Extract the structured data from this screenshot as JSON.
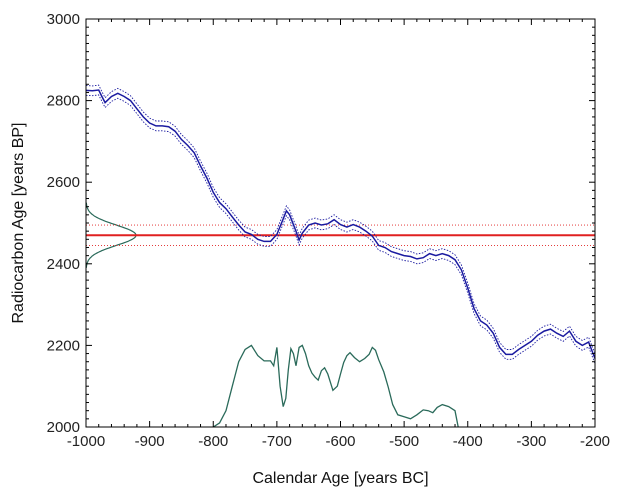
{
  "chart_data": {
    "type": "line",
    "xlabel": "Calendar Age [years BC]",
    "ylabel": "Radiocarbon Age [years BP]",
    "xlim": [
      -1000,
      -200
    ],
    "ylim": [
      2000,
      3000
    ],
    "xticks": [
      -1000,
      -900,
      -800,
      -700,
      -600,
      -500,
      -400,
      -300,
      -200
    ],
    "yticks": [
      2000,
      2200,
      2400,
      2600,
      2800,
      3000
    ],
    "xtick_labels": [
      "-1000",
      "-900",
      "-800",
      "-700",
      "-600",
      "-500",
      "-400",
      "-300",
      "-200"
    ],
    "ytick_labels": [
      "2000",
      "2200",
      "2400",
      "2600",
      "2800",
      "3000"
    ],
    "grid": false,
    "colors": {
      "calibration_curve": "#1a1aa0",
      "measurement": "#e02020",
      "distribution": "#2a6a5a"
    },
    "calibration_curve": {
      "sigma": 12,
      "points": [
        [
          -1000,
          2825
        ],
        [
          -990,
          2824
        ],
        [
          -980,
          2826
        ],
        [
          -975,
          2810
        ],
        [
          -970,
          2795
        ],
        [
          -960,
          2810
        ],
        [
          -950,
          2818
        ],
        [
          -940,
          2810
        ],
        [
          -930,
          2800
        ],
        [
          -920,
          2780
        ],
        [
          -910,
          2760
        ],
        [
          -900,
          2745
        ],
        [
          -890,
          2738
        ],
        [
          -880,
          2738
        ],
        [
          -870,
          2736
        ],
        [
          -860,
          2725
        ],
        [
          -850,
          2705
        ],
        [
          -840,
          2690
        ],
        [
          -830,
          2672
        ],
        [
          -820,
          2640
        ],
        [
          -810,
          2610
        ],
        [
          -800,
          2575
        ],
        [
          -790,
          2550
        ],
        [
          -780,
          2535
        ],
        [
          -770,
          2515
        ],
        [
          -760,
          2495
        ],
        [
          -750,
          2478
        ],
        [
          -740,
          2472
        ],
        [
          -730,
          2460
        ],
        [
          -720,
          2455
        ],
        [
          -710,
          2455
        ],
        [
          -700,
          2472
        ],
        [
          -690,
          2510
        ],
        [
          -685,
          2530
        ],
        [
          -680,
          2520
        ],
        [
          -670,
          2480
        ],
        [
          -665,
          2458
        ],
        [
          -660,
          2475
        ],
        [
          -650,
          2495
        ],
        [
          -640,
          2500
        ],
        [
          -630,
          2495
        ],
        [
          -620,
          2498
        ],
        [
          -610,
          2508
        ],
        [
          -600,
          2496
        ],
        [
          -590,
          2490
        ],
        [
          -580,
          2496
        ],
        [
          -570,
          2490
        ],
        [
          -560,
          2480
        ],
        [
          -550,
          2468
        ],
        [
          -540,
          2445
        ],
        [
          -530,
          2440
        ],
        [
          -520,
          2430
        ],
        [
          -510,
          2425
        ],
        [
          -500,
          2420
        ],
        [
          -490,
          2418
        ],
        [
          -480,
          2412
        ],
        [
          -470,
          2415
        ],
        [
          -460,
          2425
        ],
        [
          -450,
          2420
        ],
        [
          -440,
          2425
        ],
        [
          -430,
          2420
        ],
        [
          -420,
          2410
        ],
        [
          -410,
          2385
        ],
        [
          -400,
          2340
        ],
        [
          -390,
          2290
        ],
        [
          -380,
          2260
        ],
        [
          -370,
          2250
        ],
        [
          -360,
          2230
        ],
        [
          -350,
          2195
        ],
        [
          -340,
          2178
        ],
        [
          -330,
          2178
        ],
        [
          -320,
          2190
        ],
        [
          -310,
          2200
        ],
        [
          -300,
          2210
        ],
        [
          -290,
          2225
        ],
        [
          -280,
          2235
        ],
        [
          -270,
          2240
        ],
        [
          -260,
          2230
        ],
        [
          -250,
          2222
        ],
        [
          -240,
          2235
        ],
        [
          -230,
          2210
        ],
        [
          -220,
          2200
        ],
        [
          -210,
          2208
        ],
        [
          -200,
          2168
        ]
      ]
    },
    "measurement": {
      "mean": 2470,
      "sigma": 25
    },
    "calibrated_distribution": {
      "baseline": 2000,
      "points": [
        [
          -800,
          2000
        ],
        [
          -790,
          2010
        ],
        [
          -780,
          2040
        ],
        [
          -770,
          2100
        ],
        [
          -760,
          2160
        ],
        [
          -750,
          2190
        ],
        [
          -740,
          2200
        ],
        [
          -730,
          2175
        ],
        [
          -720,
          2162
        ],
        [
          -710,
          2162
        ],
        [
          -705,
          2150
        ],
        [
          -700,
          2195
        ],
        [
          -695,
          2100
        ],
        [
          -690,
          2050
        ],
        [
          -686,
          2070
        ],
        [
          -682,
          2140
        ],
        [
          -678,
          2192
        ],
        [
          -674,
          2180
        ],
        [
          -670,
          2150
        ],
        [
          -665,
          2195
        ],
        [
          -660,
          2200
        ],
        [
          -655,
          2180
        ],
        [
          -650,
          2150
        ],
        [
          -645,
          2132
        ],
        [
          -640,
          2122
        ],
        [
          -635,
          2115
        ],
        [
          -630,
          2138
        ],
        [
          -625,
          2145
        ],
        [
          -620,
          2130
        ],
        [
          -612,
          2090
        ],
        [
          -605,
          2100
        ],
        [
          -600,
          2130
        ],
        [
          -595,
          2158
        ],
        [
          -590,
          2175
        ],
        [
          -585,
          2182
        ],
        [
          -578,
          2170
        ],
        [
          -570,
          2160
        ],
        [
          -562,
          2168
        ],
        [
          -555,
          2178
        ],
        [
          -550,
          2195
        ],
        [
          -545,
          2188
        ],
        [
          -540,
          2165
        ],
        [
          -532,
          2135
        ],
        [
          -525,
          2098
        ],
        [
          -518,
          2055
        ],
        [
          -510,
          2030
        ],
        [
          -500,
          2025
        ],
        [
          -490,
          2020
        ],
        [
          -480,
          2030
        ],
        [
          -470,
          2042
        ],
        [
          -462,
          2040
        ],
        [
          -455,
          2035
        ],
        [
          -448,
          2048
        ],
        [
          -440,
          2055
        ],
        [
          -430,
          2050
        ],
        [
          -420,
          2040
        ],
        [
          -415,
          2000
        ]
      ]
    }
  }
}
